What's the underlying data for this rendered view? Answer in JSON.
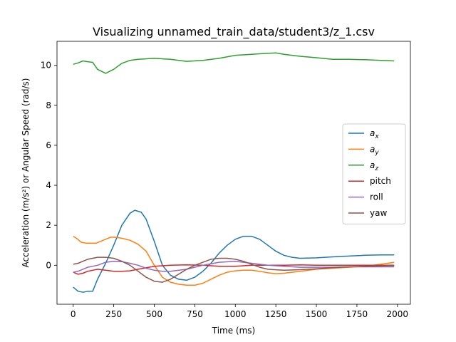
{
  "chart_data": {
    "type": "line",
    "title": "Visualizing unnamed_train_data/student3/z_1.csv",
    "xlabel": "Time (ms)",
    "ylabel": "Acceleration (m/s²) or Angular Speed (rad/s)",
    "xlim": [
      -100,
      2080
    ],
    "ylim": [
      -1.95,
      11.2
    ],
    "xticks": [
      0,
      250,
      500,
      750,
      1000,
      1250,
      1500,
      1750,
      2000
    ],
    "yticks": [
      0,
      2,
      4,
      6,
      8,
      10
    ],
    "grid": false,
    "legend_position": "center-right",
    "series": [
      {
        "name": "a_x",
        "label_base": "a",
        "label_sub": "x",
        "color": "#1f77b4",
        "x": [
          0,
          30,
          60,
          90,
          120,
          150,
          200,
          250,
          300,
          350,
          380,
          420,
          450,
          500,
          550,
          600,
          650,
          700,
          750,
          800,
          850,
          900,
          950,
          1000,
          1050,
          1100,
          1150,
          1200,
          1250,
          1300,
          1350,
          1400,
          1500,
          1600,
          1700,
          1800,
          1900,
          1980
        ],
        "y": [
          -1.1,
          -1.3,
          -1.35,
          -1.3,
          -1.3,
          -0.7,
          0.1,
          1.0,
          2.0,
          2.6,
          2.75,
          2.65,
          2.3,
          1.2,
          0.0,
          -0.5,
          -0.7,
          -0.75,
          -0.6,
          -0.3,
          0.1,
          0.6,
          1.0,
          1.3,
          1.45,
          1.45,
          1.3,
          1.0,
          0.7,
          0.5,
          0.4,
          0.35,
          0.37,
          0.42,
          0.46,
          0.5,
          0.52,
          0.52
        ]
      },
      {
        "name": "a_y",
        "label_base": "a",
        "label_sub": "y",
        "color": "#ff7f0e",
        "x": [
          0,
          20,
          50,
          80,
          110,
          140,
          170,
          200,
          230,
          260,
          300,
          350,
          400,
          450,
          500,
          550,
          600,
          650,
          700,
          750,
          800,
          850,
          900,
          950,
          1000,
          1050,
          1100,
          1150,
          1200,
          1250,
          1300,
          1400,
          1500,
          1600,
          1700,
          1800,
          1900,
          1980
        ],
        "y": [
          1.45,
          1.35,
          1.15,
          1.1,
          1.1,
          1.1,
          1.2,
          1.3,
          1.4,
          1.4,
          1.35,
          1.25,
          1.05,
          0.7,
          0.0,
          -0.6,
          -0.85,
          -0.95,
          -1.0,
          -1.0,
          -0.9,
          -0.7,
          -0.5,
          -0.35,
          -0.28,
          -0.25,
          -0.25,
          -0.3,
          -0.38,
          -0.42,
          -0.4,
          -0.3,
          -0.2,
          -0.15,
          -0.1,
          -0.05,
          0.05,
          0.15
        ]
      },
      {
        "name": "a_z",
        "label_base": "a",
        "label_sub": "z",
        "color": "#2ca02c",
        "x": [
          0,
          30,
          60,
          90,
          120,
          150,
          200,
          250,
          300,
          350,
          400,
          500,
          600,
          700,
          800,
          900,
          1000,
          1100,
          1200,
          1250,
          1300,
          1400,
          1500,
          1600,
          1700,
          1800,
          1900,
          1980
        ],
        "y": [
          10.05,
          10.12,
          10.22,
          10.18,
          10.15,
          9.8,
          9.6,
          9.8,
          10.1,
          10.25,
          10.3,
          10.35,
          10.3,
          10.2,
          10.25,
          10.35,
          10.5,
          10.55,
          10.6,
          10.62,
          10.55,
          10.45,
          10.38,
          10.3,
          10.3,
          10.28,
          10.25,
          10.22
        ]
      },
      {
        "name": "pitch",
        "label_base": "pitch",
        "label_sub": "",
        "color": "#d62728",
        "x": [
          0,
          30,
          60,
          90,
          120,
          150,
          200,
          250,
          300,
          350,
          400,
          500,
          600,
          700,
          800,
          900,
          1000,
          1100,
          1200,
          1300,
          1400,
          1500,
          1600,
          1700,
          1800,
          1900,
          1980
        ],
        "y": [
          -0.35,
          -0.45,
          -0.4,
          -0.3,
          -0.25,
          -0.2,
          -0.25,
          -0.3,
          -0.3,
          -0.28,
          -0.2,
          -0.05,
          0.0,
          0.02,
          0.0,
          -0.05,
          -0.05,
          0.0,
          0.0,
          0.0,
          0.02,
          0.0,
          0.0,
          0.0,
          0.0,
          0.0,
          0.0
        ]
      },
      {
        "name": "roll",
        "label_base": "roll",
        "label_sub": "",
        "color": "#9467bd",
        "x": [
          0,
          30,
          60,
          90,
          120,
          150,
          200,
          250,
          300,
          350,
          400,
          450,
          500,
          550,
          600,
          700,
          800,
          900,
          1000,
          1100,
          1200,
          1300,
          1400,
          1500,
          1600,
          1700,
          1800,
          1900,
          1980
        ],
        "y": [
          -0.35,
          -0.3,
          -0.2,
          -0.1,
          -0.05,
          0.0,
          0.15,
          0.2,
          0.18,
          0.1,
          0.0,
          -0.15,
          -0.25,
          -0.3,
          -0.3,
          -0.2,
          0.0,
          0.15,
          0.2,
          0.1,
          0.0,
          -0.05,
          -0.1,
          -0.1,
          -0.1,
          -0.08,
          -0.08,
          -0.08,
          -0.08
        ]
      },
      {
        "name": "yaw",
        "label_base": "yaw",
        "label_sub": "",
        "color": "#8c564b",
        "x": [
          0,
          30,
          60,
          90,
          120,
          150,
          200,
          250,
          300,
          350,
          400,
          450,
          500,
          550,
          600,
          650,
          700,
          750,
          800,
          850,
          900,
          950,
          1000,
          1050,
          1100,
          1150,
          1200,
          1300,
          1400,
          1500,
          1600,
          1700,
          1800,
          1900,
          1980
        ],
        "y": [
          0.05,
          0.1,
          0.2,
          0.3,
          0.35,
          0.4,
          0.4,
          0.35,
          0.2,
          0.0,
          -0.3,
          -0.6,
          -0.8,
          -0.85,
          -0.7,
          -0.45,
          -0.2,
          0.0,
          0.15,
          0.3,
          0.35,
          0.35,
          0.3,
          0.2,
          0.05,
          -0.1,
          -0.2,
          -0.25,
          -0.22,
          -0.18,
          -0.12,
          -0.08,
          -0.05,
          -0.03,
          -0.02
        ]
      }
    ]
  }
}
